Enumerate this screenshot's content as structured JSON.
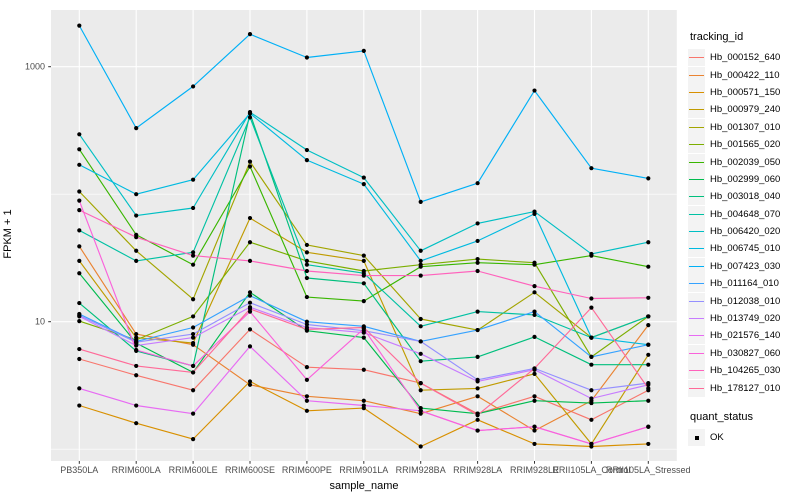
{
  "figure": {
    "background": "#FFFFFF",
    "panel_background": "#EBEBEB",
    "gridline_color": "#FFFFFF",
    "tick_color": "#333333",
    "tick_label_color": "#4D4D4D",
    "axis_title_color": "#000000",
    "point_color": "#000000"
  },
  "chart_data": {
    "type": "line",
    "title": "",
    "xlabel": "sample_name",
    "ylabel": "FPKM + 1",
    "y_scale": "log10",
    "grid": true,
    "ylim": [
      0.85,
      2800
    ],
    "y_tick_values": [
      1000,
      10
    ],
    "y_tick_labels": [
      "1000",
      "10"
    ],
    "y_minor_values": [
      100,
      1
    ],
    "categories": [
      "PB350LA",
      "RRIM600LA",
      "RRIM600LE",
      "RRIM600SE",
      "RRIM600PE",
      "RRIM901LA",
      "RRIM928BA",
      "RRIM928LA",
      "RRIM928LE",
      "RRII105LA_Control",
      "RRII105LA_Stressed"
    ],
    "legend": {
      "title": "tracking_id",
      "position": "right"
    },
    "quant_status_legend": {
      "title": "quant_status",
      "items": [
        {
          "label": "OK",
          "marker": "black-point"
        }
      ]
    },
    "series": [
      {
        "name": "Hb_000152_640",
        "color": "#F8766D",
        "values": [
          5.1,
          3.8,
          2.9,
          8.7,
          4.4,
          4.2,
          3.3,
          1.9,
          2.6,
          1.7,
          2.9
        ]
      },
      {
        "name": "Hb_000422_110",
        "color": "#EA8331",
        "values": [
          39,
          8.0,
          6.6,
          3.2,
          2.6,
          2.4,
          1.9,
          2.6,
          1.4,
          2.4,
          9.4
        ]
      },
      {
        "name": "Hb_000571_150",
        "color": "#D89000",
        "values": [
          2.2,
          1.6,
          1.2,
          3.4,
          2.0,
          2.1,
          1.05,
          1.7,
          1.1,
          1.05,
          1.1
        ]
      },
      {
        "name": "Hb_000979_240",
        "color": "#C09B00",
        "values": [
          30,
          7.5,
          6.8,
          65,
          35,
          30,
          2.9,
          3.0,
          3.9,
          1.1,
          5.5
        ]
      },
      {
        "name": "Hb_001307_010",
        "color": "#A3A500",
        "values": [
          105,
          36,
          15,
          180,
          40,
          33,
          10.5,
          8.6,
          17,
          7.5,
          11
        ]
      },
      {
        "name": "Hb_001565_020",
        "color": "#7CAE00",
        "values": [
          10.1,
          7.2,
          11,
          42,
          30,
          25,
          28,
          31,
          29,
          5.3,
          11
        ]
      },
      {
        "name": "Hb_002039_050",
        "color": "#39B600",
        "values": [
          225,
          48,
          28,
          165,
          15.6,
          14.5,
          27,
          29,
          28,
          33,
          27
        ]
      },
      {
        "name": "Hb_002999_060",
        "color": "#00BB4E",
        "values": [
          24,
          6.8,
          4.0,
          17,
          8.5,
          7.5,
          2.1,
          1.9,
          2.4,
          2.3,
          2.4
        ]
      },
      {
        "name": "Hb_003018_040",
        "color": "#00BF7D",
        "values": [
          14,
          5.9,
          4.5,
          430,
          22,
          20,
          4.9,
          5.3,
          7.6,
          4.6,
          4.6
        ]
      },
      {
        "name": "Hb_004648_070",
        "color": "#00C1A3",
        "values": [
          52,
          30,
          35,
          400,
          28,
          24,
          9.2,
          12,
          11.3,
          7.5,
          11
        ]
      },
      {
        "name": "Hb_006420_020",
        "color": "#00BFC4",
        "values": [
          295,
          68,
          78,
          440,
          222,
          135,
          36,
          59,
          73,
          34,
          42
        ]
      },
      {
        "name": "Hb_006745_010",
        "color": "#00BAE0",
        "values": [
          170,
          100,
          130,
          430,
          185,
          120,
          30,
          43,
          70,
          7.5,
          6.6
        ]
      },
      {
        "name": "Hb_007423_030",
        "color": "#00B0F6",
        "values": [
          2100,
          330,
          700,
          1800,
          1180,
          1330,
          87,
          122,
          650,
          160,
          133
        ]
      },
      {
        "name": "Hb_011164_010",
        "color": "#35A2FF",
        "values": [
          11.5,
          7.0,
          9.0,
          16,
          10,
          9.2,
          7.0,
          8.6,
          12,
          5.3,
          6.6
        ]
      },
      {
        "name": "Hb_012038_010",
        "color": "#9590FF",
        "values": [
          11.2,
          6.9,
          8.0,
          14.1,
          9.5,
          8.5,
          7.0,
          3.5,
          4.3,
          2.9,
          3.3
        ]
      },
      {
        "name": "Hb_013749_020",
        "color": "#C77CFF",
        "values": [
          11.0,
          6.5,
          7.5,
          13,
          9.0,
          8.2,
          5.6,
          3.4,
          4.2,
          2.5,
          3.2
        ]
      },
      {
        "name": "Hb_021576_140",
        "color": "#E76BF3",
        "values": [
          3.0,
          2.2,
          1.9,
          6.4,
          2.4,
          2.2,
          2.0,
          1.4,
          1.5,
          1.1,
          1.5
        ]
      },
      {
        "name": "Hb_030827_060",
        "color": "#FA62DB",
        "values": [
          89,
          6.0,
          4.5,
          12,
          3.5,
          8.8,
          2.0,
          1.4,
          1.5,
          1.1,
          1.5
        ]
      },
      {
        "name": "Hb_104265_030",
        "color": "#FF62BC",
        "values": [
          75,
          46,
          33,
          30,
          25,
          23,
          23,
          25,
          19,
          15.2,
          15.4
        ]
      },
      {
        "name": "Hb_178127_010",
        "color": "#FF6A98",
        "values": [
          6.1,
          4.5,
          4.0,
          12.6,
          8.7,
          9.0,
          3.3,
          1.85,
          4.3,
          12.9,
          3.0
        ]
      }
    ]
  }
}
